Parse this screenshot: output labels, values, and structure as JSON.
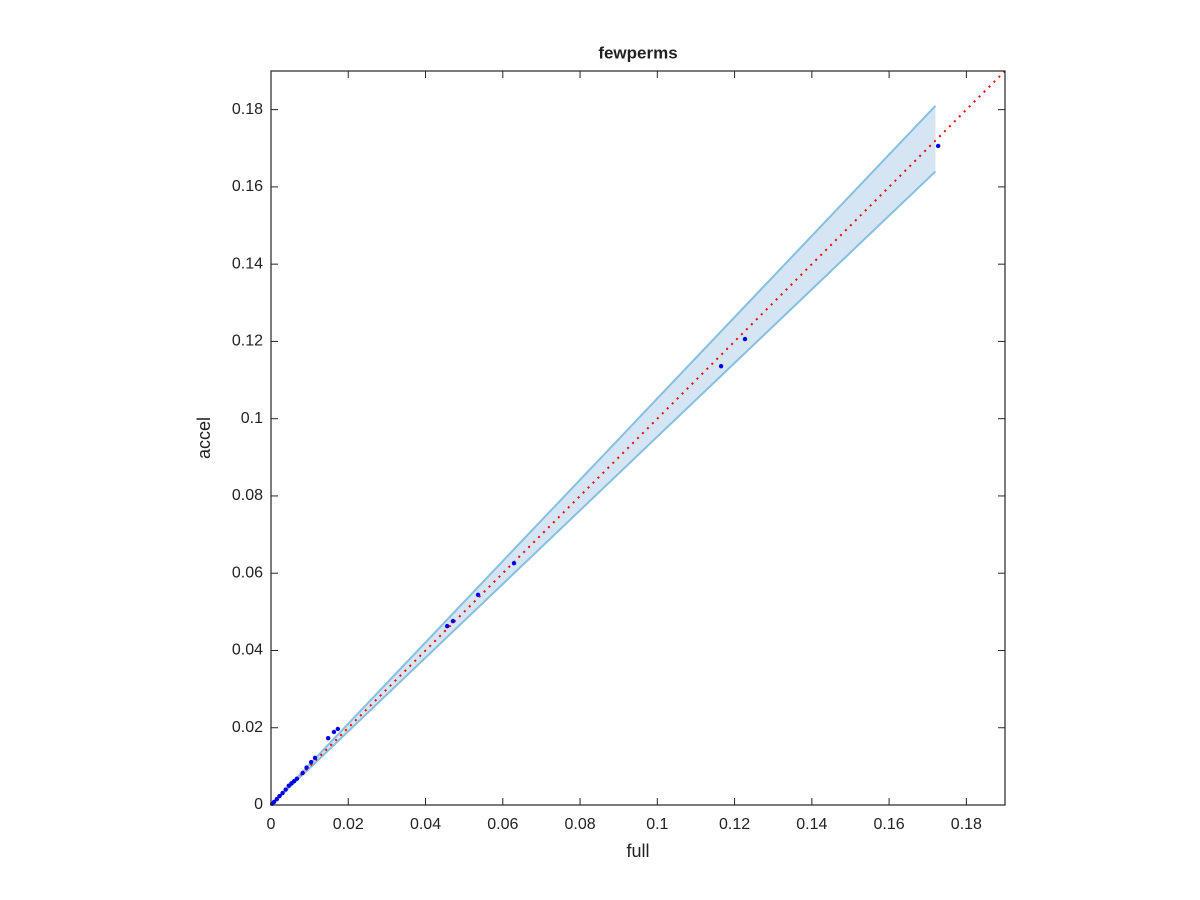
{
  "chart_data": {
    "type": "scatter",
    "title": "fewperms",
    "x_label": "full",
    "y_label": "accel",
    "xlim": [
      0,
      0.19
    ],
    "ylim": [
      0,
      0.19
    ],
    "xticks": [
      0,
      0.02,
      0.04,
      0.06,
      0.08,
      0.1,
      0.12,
      0.14,
      0.16,
      0.18
    ],
    "yticks": [
      0,
      0.02,
      0.04,
      0.06,
      0.08,
      0.1,
      0.12,
      0.14,
      0.16,
      0.18
    ],
    "band": {
      "x": [
        0,
        0.172
      ],
      "upper": [
        0,
        0.181
      ],
      "lower": [
        0,
        0.164
      ],
      "color": "#d5e5f3",
      "edge_color": "#86bfe0"
    },
    "reference_line": {
      "x": [
        0,
        0.19
      ],
      "y": [
        0,
        0.19
      ],
      "color": "#ff0000",
      "style": "dotted"
    },
    "points": {
      "color": "#0000ee",
      "x": [
        0.1727,
        0.1227,
        0.1165,
        0.0629,
        0.0536,
        0.0471,
        0.0456,
        0.0173,
        0.0163,
        0.0148,
        0.0114,
        0.0104,
        0.0092,
        0.0082,
        0.0067,
        0.006,
        0.0053,
        0.0046,
        0.0038,
        0.003,
        0.0022,
        0.0015,
        0.0008,
        0.0003
      ],
      "y": [
        0.1706,
        0.1206,
        0.1136,
        0.0626,
        0.0544,
        0.0476,
        0.0463,
        0.0197,
        0.0189,
        0.0173,
        0.0122,
        0.0111,
        0.0097,
        0.0083,
        0.0068,
        0.0062,
        0.0056,
        0.005,
        0.004,
        0.0031,
        0.0023,
        0.0015,
        0.0008,
        0.0003
      ]
    }
  }
}
